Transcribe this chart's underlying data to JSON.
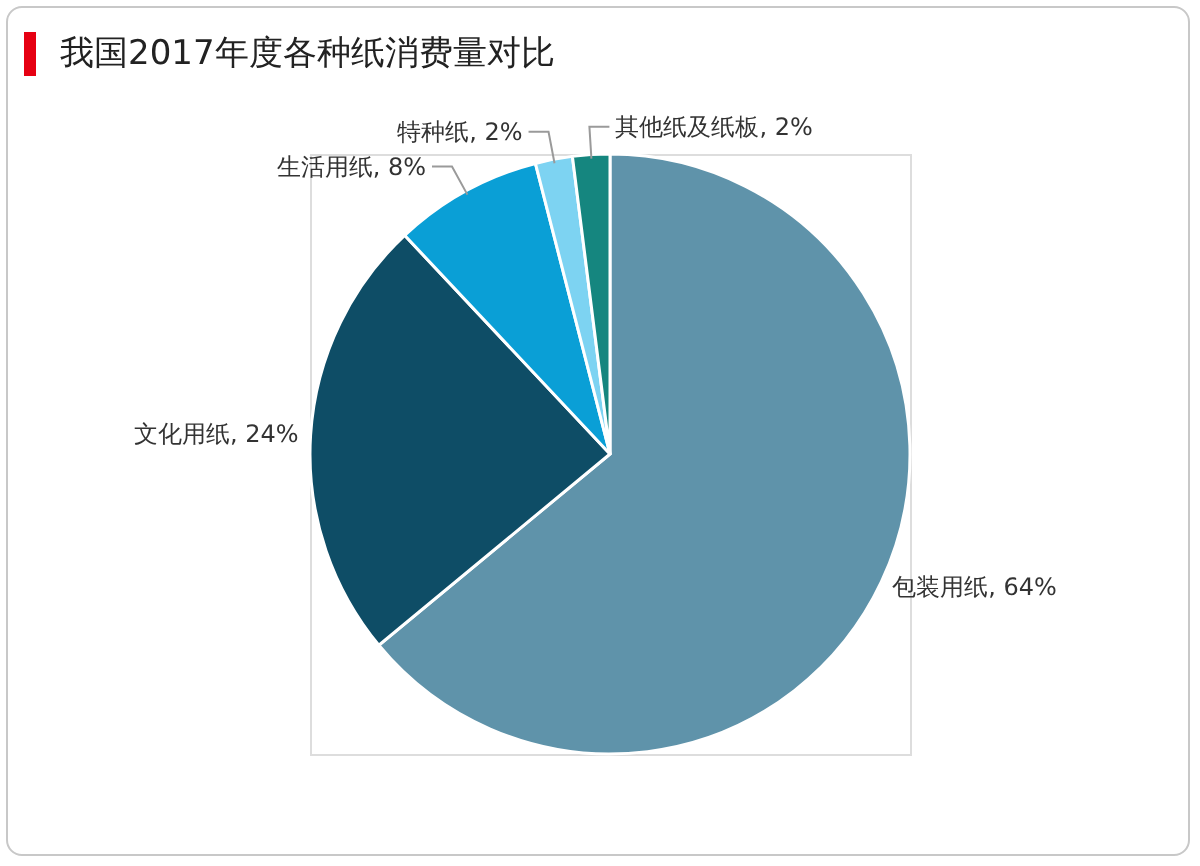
{
  "chart_data": {
    "type": "pie",
    "title": "我国2017年度各种纸消费量对比",
    "categories": [
      "包装用纸",
      "文化用纸",
      "生活用纸",
      "特种纸",
      "其他纸及纸板"
    ],
    "values": [
      64,
      24,
      8,
      2,
      2
    ],
    "value_labels": [
      "64%",
      "24%",
      "8%",
      "2%",
      "2%"
    ],
    "colors": [
      "#5f93aa",
      "#0e4d66",
      "#0a9fd6",
      "#7dd3f2",
      "#15867f"
    ]
  }
}
